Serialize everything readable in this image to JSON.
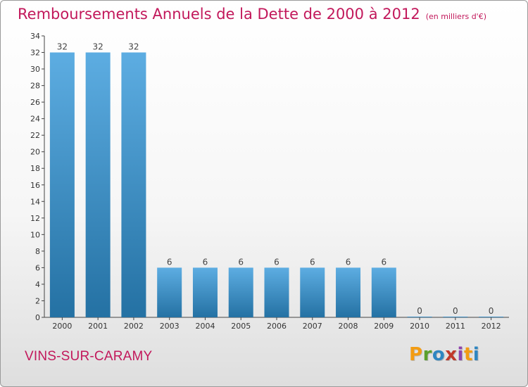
{
  "header": {
    "title": "Remboursements Annuels de la Dette de 2000 à 2012",
    "unit": "(en milliers d'€)"
  },
  "footer": {
    "commune": "VINS-SUR-CARAMY",
    "logo_text": "Proxiti",
    "logo_colors": [
      "#f39c12",
      "#5aa02c",
      "#2e86c1",
      "#c0392b",
      "#8e44ad",
      "#f39c12",
      "#2e86c1"
    ]
  },
  "colors": {
    "title": "#c2185b",
    "bar_top": "#5dade2",
    "bar_bottom": "#2471a3"
  },
  "chart_data": {
    "type": "bar",
    "title": "Remboursements Annuels de la Dette de 2000 à 2012",
    "xlabel": "",
    "ylabel": "",
    "categories": [
      "2000",
      "2001",
      "2002",
      "2003",
      "2004",
      "2005",
      "2006",
      "2007",
      "2008",
      "2009",
      "2010",
      "2011",
      "2012"
    ],
    "values": [
      32,
      32,
      32,
      6,
      6,
      6,
      6,
      6,
      6,
      6,
      0,
      0,
      0
    ],
    "ylim": [
      0,
      34
    ],
    "yticks": [
      0,
      2,
      4,
      6,
      8,
      10,
      12,
      14,
      16,
      18,
      20,
      22,
      24,
      26,
      28,
      30,
      32,
      34
    ],
    "grid": false,
    "legend": "none"
  }
}
